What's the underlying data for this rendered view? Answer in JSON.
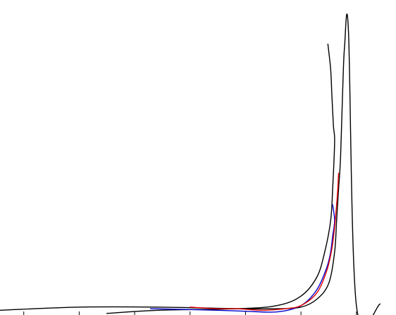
{
  "chart_data": {
    "type": "line",
    "title": "",
    "xlabel": "",
    "ylabel": "",
    "xlim": [
      0,
      1
    ],
    "ylim": [
      0,
      1
    ],
    "grid": false,
    "legend": "none",
    "x_ticks": [
      0.06,
      0.2,
      0.34,
      0.48,
      0.62,
      0.76,
      0.9
    ],
    "series": [
      {
        "color": "#000000",
        "x": [
          0.0,
          0.2,
          0.4,
          0.6,
          0.7,
          0.76,
          0.8,
          0.83,
          0.845,
          0.85,
          0.855,
          0.86,
          0.865,
          0.87,
          0.88,
          0.9,
          0.96
        ],
        "y": [
          0.015,
          0.025,
          0.025,
          0.02,
          0.02,
          0.025,
          0.05,
          0.1,
          0.2,
          0.3,
          0.4,
          0.5,
          0.7,
          0.85,
          0.9,
          0.03,
          0.035
        ]
      },
      {
        "color": "#000000",
        "x": [
          0.27,
          0.4,
          0.6,
          0.7,
          0.76,
          0.8,
          0.82,
          0.835,
          0.84,
          0.845,
          0.842,
          0.838,
          0.835,
          0.828
        ],
        "y": [
          0.005,
          0.015,
          0.02,
          0.03,
          0.06,
          0.12,
          0.2,
          0.3,
          0.4,
          0.55,
          0.6,
          0.7,
          0.78,
          0.86
        ]
      },
      {
        "color": "#0000cc",
        "x": [
          0.38,
          0.45,
          0.55,
          0.62,
          0.7,
          0.76,
          0.8,
          0.825,
          0.835,
          0.84,
          0.845,
          0.84
        ],
        "y": [
          0.02,
          0.018,
          0.015,
          0.012,
          0.01,
          0.03,
          0.08,
          0.15,
          0.2,
          0.25,
          0.3,
          0.35
        ]
      },
      {
        "color": "#dd0000",
        "x": [
          0.48,
          0.55,
          0.6,
          0.66,
          0.72,
          0.76,
          0.8,
          0.825,
          0.838,
          0.845,
          0.85,
          0.853,
          0.855
        ],
        "y": [
          0.025,
          0.02,
          0.02,
          0.015,
          0.02,
          0.03,
          0.07,
          0.14,
          0.21,
          0.28,
          0.35,
          0.4,
          0.45
        ]
      }
    ]
  }
}
